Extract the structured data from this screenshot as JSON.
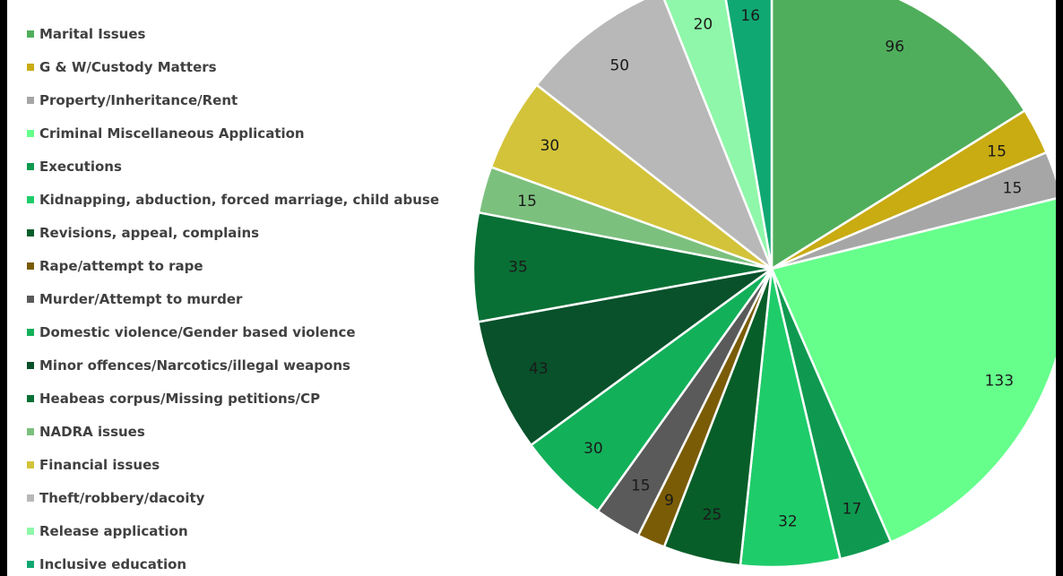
{
  "chart_data": {
    "type": "pie",
    "legend_position": "left",
    "slices": [
      {
        "label": "Marital Issues",
        "value": 96,
        "color": "#4fae5b"
      },
      {
        "label": "G & W/Custody Matters",
        "value": 15,
        "color": "#c9ab12"
      },
      {
        "label": "Property/Inheritance/Rent",
        "value": 15,
        "color": "#a6a6a6"
      },
      {
        "label": "Criminal Miscellaneous Application",
        "value": 133,
        "color": "#66ff8c"
      },
      {
        "label": "Executions",
        "value": 17,
        "color": "#0f9950"
      },
      {
        "label": "Kidnapping, abduction, forced marriage, child abuse",
        "value": 32,
        "color": "#1fcc6a"
      },
      {
        "label": "Revisions, appeal, complains",
        "value": 25,
        "color": "#075e29"
      },
      {
        "label": "Rape/attempt to rape",
        "value": 9,
        "color": "#7a5c06"
      },
      {
        "label": "Murder/Attempt to murder",
        "value": 15,
        "color": "#5a5a5a"
      },
      {
        "label": "Domestic violence/Gender based violence",
        "value": 30,
        "color": "#13b05a"
      },
      {
        "label": "Minor offences/Narcotics/illegal weapons",
        "value": 43,
        "color": "#08512a"
      },
      {
        "label": "Heabeas corpus/Missing petitions/CP",
        "value": 35,
        "color": "#087035"
      },
      {
        "label": "NADRA issues",
        "value": 15,
        "color": "#7cc07e"
      },
      {
        "label": "Financial issues",
        "value": 30,
        "color": "#d3c33a"
      },
      {
        "label": "Theft/robbery/dacoity",
        "value": 50,
        "color": "#b8b8b8"
      },
      {
        "label": "Release application",
        "value": 20,
        "color": "#8ff7a9"
      },
      {
        "label": "Inclusive education",
        "value": 16,
        "color": "#10a872"
      }
    ]
  }
}
